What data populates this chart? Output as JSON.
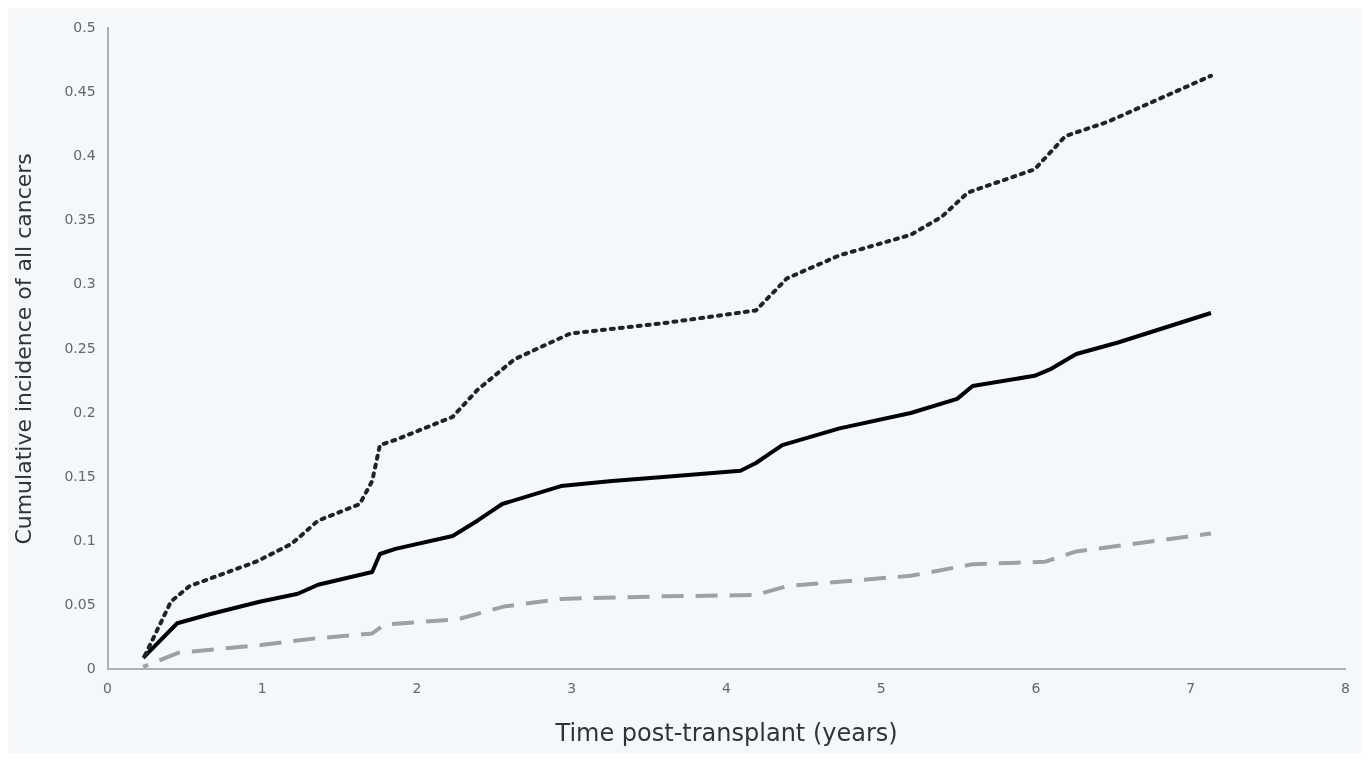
{
  "chart_data": {
    "type": "line",
    "xlabel": "Time post-transplant (years)",
    "ylabel": "Cumulative incidence of all cancers",
    "xlim": [
      0,
      8
    ],
    "xticks": [
      0,
      1,
      2,
      3,
      4,
      5,
      6,
      7,
      8
    ],
    "ylim": [
      0,
      0.5
    ],
    "yticks": [
      0,
      0.05,
      0.1,
      0.15,
      0.2,
      0.25,
      0.3,
      0.35,
      0.4,
      0.45,
      0.5
    ],
    "grid": false,
    "legend": false,
    "marker": "none",
    "series": [
      {
        "color": "#222222",
        "line_style": "dotted",
        "x": [
          0.23,
          0.41,
          0.53,
          0.96,
          1.19,
          1.36,
          1.63,
          1.71,
          1.76,
          1.86,
          2.23,
          2.39,
          2.63,
          2.99,
          3.59,
          4.19,
          4.39,
          4.73,
          5.19,
          5.39,
          5.56,
          5.99,
          6.19,
          6.46,
          7.13
        ],
        "values": [
          0.008,
          0.053,
          0.065,
          0.084,
          0.098,
          0.116,
          0.129,
          0.147,
          0.175,
          0.179,
          0.197,
          0.218,
          0.242,
          0.262,
          0.27,
          0.28,
          0.305,
          0.323,
          0.339,
          0.353,
          0.372,
          0.39,
          0.416,
          0.427,
          0.463
        ]
      },
      {
        "color": "#000000",
        "line_style": "solid",
        "x": [
          0.23,
          0.45,
          0.66,
          0.99,
          1.23,
          1.36,
          1.71,
          1.76,
          1.86,
          2.23,
          2.39,
          2.55,
          2.93,
          3.26,
          3.59,
          4.09,
          4.19,
          4.36,
          4.73,
          5.19,
          5.49,
          5.59,
          5.99,
          6.09,
          6.26,
          6.53,
          7.13
        ],
        "values": [
          0.009,
          0.036,
          0.043,
          0.053,
          0.059,
          0.066,
          0.076,
          0.09,
          0.094,
          0.104,
          0.116,
          0.129,
          0.143,
          0.147,
          0.15,
          0.155,
          0.161,
          0.175,
          0.188,
          0.2,
          0.211,
          0.221,
          0.229,
          0.234,
          0.246,
          0.255,
          0.278
        ]
      },
      {
        "color": "#a0a0a0",
        "line_style": "dashed",
        "x": [
          0.23,
          0.46,
          0.99,
          1.33,
          1.71,
          1.79,
          2.26,
          2.56,
          2.93,
          3.59,
          4.19,
          4.39,
          5.19,
          5.59,
          6.06,
          6.26,
          7.13
        ],
        "values": [
          0.002,
          0.013,
          0.019,
          0.024,
          0.028,
          0.035,
          0.039,
          0.049,
          0.055,
          0.057,
          0.058,
          0.065,
          0.073,
          0.082,
          0.084,
          0.092,
          0.106
        ]
      }
    ]
  }
}
